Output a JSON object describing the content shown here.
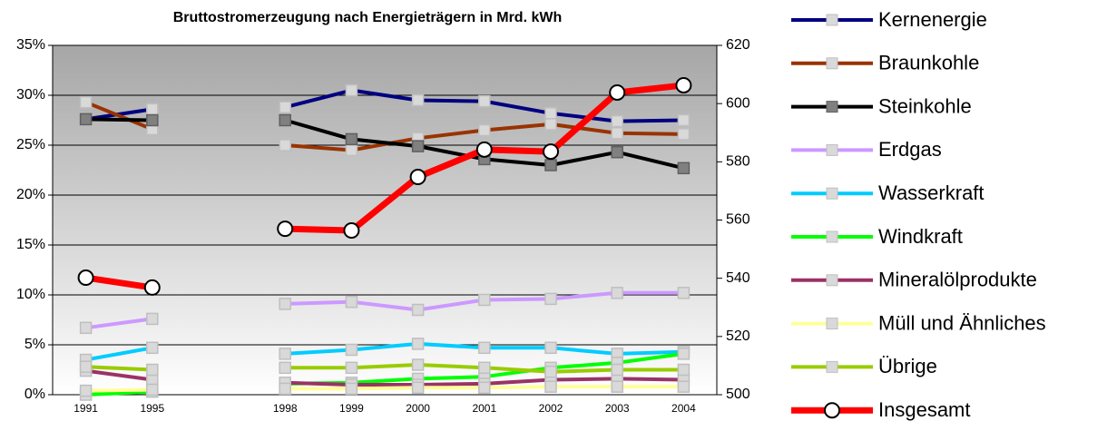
{
  "chart_data": {
    "type": "line",
    "title": "Bruttostromerzeugung nach Energieträgern in Mrd. kWh",
    "categories": [
      "1991",
      "1995",
      null,
      "1998",
      "1999",
      "2000",
      "2001",
      "2002",
      "2003",
      "2004"
    ],
    "ylim": [
      0,
      35
    ],
    "yticks": [
      {
        "value": 0,
        "label": "0%"
      },
      {
        "value": 5,
        "label": "5%"
      },
      {
        "value": 10,
        "label": "10%"
      },
      {
        "value": 15,
        "label": "15%"
      },
      {
        "value": 20,
        "label": "20%"
      },
      {
        "value": 25,
        "label": "25%"
      },
      {
        "value": 30,
        "label": "30%"
      },
      {
        "value": 35,
        "label": "35%"
      }
    ],
    "y2lim": [
      500,
      620
    ],
    "y2ticks": [
      500,
      520,
      540,
      560,
      580,
      600,
      620
    ],
    "grid": true,
    "legend": "right",
    "series": [
      {
        "name": "Kernenergie",
        "color": "#000080",
        "values": [
          27.6,
          28.6,
          null,
          28.8,
          30.5,
          29.5,
          29.4,
          28.2,
          27.4,
          27.5
        ]
      },
      {
        "name": "Braunkohle",
        "color": "#993300",
        "values": [
          29.3,
          26.6,
          null,
          25.0,
          24.5,
          25.7,
          26.5,
          27.1,
          26.2,
          26.1
        ]
      },
      {
        "name": "Steinkohle",
        "color": "#000000",
        "values": [
          27.6,
          27.5,
          null,
          27.5,
          25.6,
          24.9,
          23.6,
          23.0,
          24.3,
          22.7
        ]
      },
      {
        "name": "Erdgas",
        "color": "#cc99ff",
        "values": [
          6.7,
          7.6,
          null,
          9.1,
          9.3,
          8.5,
          9.5,
          9.6,
          10.2,
          10.2
        ]
      },
      {
        "name": "Wasserkraft",
        "color": "#00ccff",
        "values": [
          3.5,
          4.7,
          null,
          4.1,
          4.5,
          5.1,
          4.7,
          4.7,
          4.1,
          4.3
        ]
      },
      {
        "name": "Windkraft",
        "color": "#00ff00",
        "values": [
          0.0,
          0.3,
          null,
          1.1,
          1.2,
          1.6,
          1.8,
          2.7,
          3.2,
          4.1
        ]
      },
      {
        "name": "Mineralölprodukte",
        "color": "#993366",
        "values": [
          2.4,
          1.5,
          null,
          1.2,
          1.0,
          1.0,
          1.1,
          1.5,
          1.6,
          1.5
        ]
      },
      {
        "name": "Müll und Ähnliches",
        "color": "#ffff99",
        "values": [
          0.4,
          0.5,
          null,
          0.6,
          0.6,
          0.7,
          0.7,
          0.8,
          0.8,
          0.8
        ]
      },
      {
        "name": "Übrige",
        "color": "#99cc00",
        "values": [
          2.8,
          2.5,
          null,
          2.7,
          2.7,
          3.0,
          2.7,
          2.3,
          2.5,
          2.5
        ]
      },
      {
        "name": "Insgesamt",
        "color": "#ff0000",
        "axis": "y2",
        "values": [
          540.2,
          536.8,
          null,
          557.0,
          556.4,
          574.8,
          584.2,
          583.5,
          603.8,
          606.3
        ]
      }
    ]
  }
}
